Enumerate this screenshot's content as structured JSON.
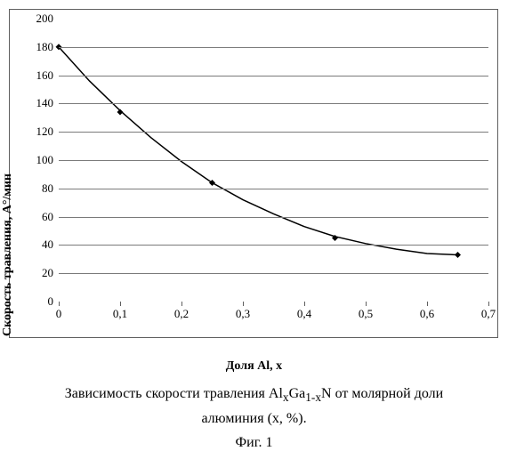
{
  "chart": {
    "type": "line",
    "title": "",
    "xlabel": "Доля Al, x",
    "ylabel": "Скорость травления, A°/мин",
    "xlim": [
      0,
      0.7
    ],
    "ylim": [
      0,
      200
    ],
    "xtick_step": 0.1,
    "ytick_step": 20,
    "xticks": [
      "0",
      "0,1",
      "0,2",
      "0,3",
      "0,4",
      "0,5",
      "0,6",
      "0,7"
    ],
    "yticks": [
      "0",
      "20",
      "40",
      "60",
      "80",
      "100",
      "120",
      "140",
      "160",
      "180",
      "200"
    ],
    "background_color": "#ffffff",
    "border_color": "#5f5f5f",
    "grid_color": "#7a7a7a",
    "line_color": "#000000",
    "line_width": 1.5,
    "marker_color": "#000000",
    "marker_style": "diamond",
    "marker_size": 7,
    "axis_label_fontsize": 14,
    "axis_label_fontweight": "bold",
    "tick_fontsize": 13,
    "series": {
      "x": [
        0.0,
        0.1,
        0.25,
        0.45,
        0.65
      ],
      "y": [
        180,
        134,
        84,
        45,
        33
      ]
    },
    "curve": {
      "x": [
        0.0,
        0.05,
        0.1,
        0.15,
        0.2,
        0.25,
        0.3,
        0.35,
        0.4,
        0.45,
        0.5,
        0.55,
        0.6,
        0.65
      ],
      "y": [
        180,
        156,
        135,
        116,
        99,
        84,
        72,
        62,
        53,
        46,
        41,
        37,
        34,
        33
      ]
    }
  },
  "caption_line1": "Зависимость скорости травления Al",
  "caption_sub1": "x",
  "caption_mid1": "Ga",
  "caption_sub2": "1-x",
  "caption_mid2": "N от молярной доли",
  "caption_line2": "алюминия (x, %).",
  "figure_label": "Фиг. 1"
}
